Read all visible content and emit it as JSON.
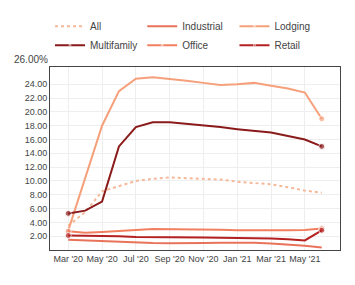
{
  "chart_data": {
    "type": "line",
    "categories": [
      "Mar '20",
      null,
      "May '20",
      null,
      "Jul '20",
      null,
      "Sep '20",
      null,
      "Nov '20",
      null,
      "Jan '21",
      null,
      "Mar '21",
      null,
      "May '21",
      null
    ],
    "series": [
      {
        "name": "All",
        "color": "#f5b99a",
        "line_style": "dotted",
        "marker": "none",
        "values": [
          3.5,
          5.5,
          8.5,
          9.2,
          10.0,
          10.3,
          10.5,
          10.4,
          10.3,
          10.2,
          9.9,
          9.7,
          9.5,
          9.1,
          8.6,
          8.3
        ]
      },
      {
        "name": "Industrial",
        "color": "#e8735a",
        "line_style": "solid",
        "marker": "none",
        "values": [
          1.5,
          1.4,
          1.25,
          1.1,
          1.05,
          1.0,
          0.98,
          0.95,
          1.0,
          1.05,
          1.1,
          1.05,
          0.95,
          0.8,
          0.6,
          0.38
        ]
      },
      {
        "name": "Lodging",
        "color": "#f5a07a",
        "line_style": "solid",
        "marker": "last",
        "values": [
          2.8,
          10.5,
          18.0,
          23.0,
          24.8,
          25.0,
          24.8,
          24.5,
          24.2,
          23.9,
          24.0,
          24.2,
          23.8,
          23.4,
          22.8,
          19.0
        ]
      },
      {
        "name": "Multifamily",
        "color": "#8b1a1a",
        "line_style": "solid",
        "marker": "ends",
        "values": [
          5.3,
          5.7,
          7.0,
          15.0,
          17.8,
          18.5,
          18.5,
          18.3,
          18.0,
          17.8,
          17.5,
          17.3,
          17.0,
          16.5,
          16.0,
          15.0
        ]
      },
      {
        "name": "Office",
        "color": "#f08060",
        "line_style": "solid",
        "marker": "ends",
        "values": [
          2.7,
          2.5,
          2.6,
          2.8,
          2.9,
          3.05,
          3.05,
          3.0,
          3.0,
          2.95,
          2.85,
          2.8,
          2.85,
          2.85,
          2.9,
          3.1
        ]
      },
      {
        "name": "Retail",
        "color": "#b52020",
        "line_style": "solid",
        "marker": "ends",
        "values": [
          2.1,
          2.1,
          2.05,
          2.0,
          1.9,
          1.85,
          1.82,
          1.8,
          1.8,
          1.78,
          1.75,
          1.72,
          1.65,
          1.55,
          1.38,
          2.85
        ]
      }
    ],
    "ylim": [
      0,
      26.5
    ],
    "yticks": [
      {
        "value": 2.0,
        "label": "2.00"
      },
      {
        "value": 4.0,
        "label": "4.00"
      },
      {
        "value": 6.0,
        "label": "6.00"
      },
      {
        "value": 8.0,
        "label": "8.00"
      },
      {
        "value": 10.0,
        "label": "10.00"
      },
      {
        "value": 12.0,
        "label": "12.00"
      },
      {
        "value": 14.0,
        "label": "14.00"
      },
      {
        "value": 16.0,
        "label": "16.00"
      },
      {
        "value": 18.0,
        "label": "18.00"
      },
      {
        "value": 20.0,
        "label": "20.00"
      },
      {
        "value": 22.0,
        "label": "22.00"
      },
      {
        "value": 24.0,
        "label": "24.00"
      }
    ],
    "annotations": [
      "26.00%"
    ],
    "grid": true,
    "legend": "top left"
  }
}
